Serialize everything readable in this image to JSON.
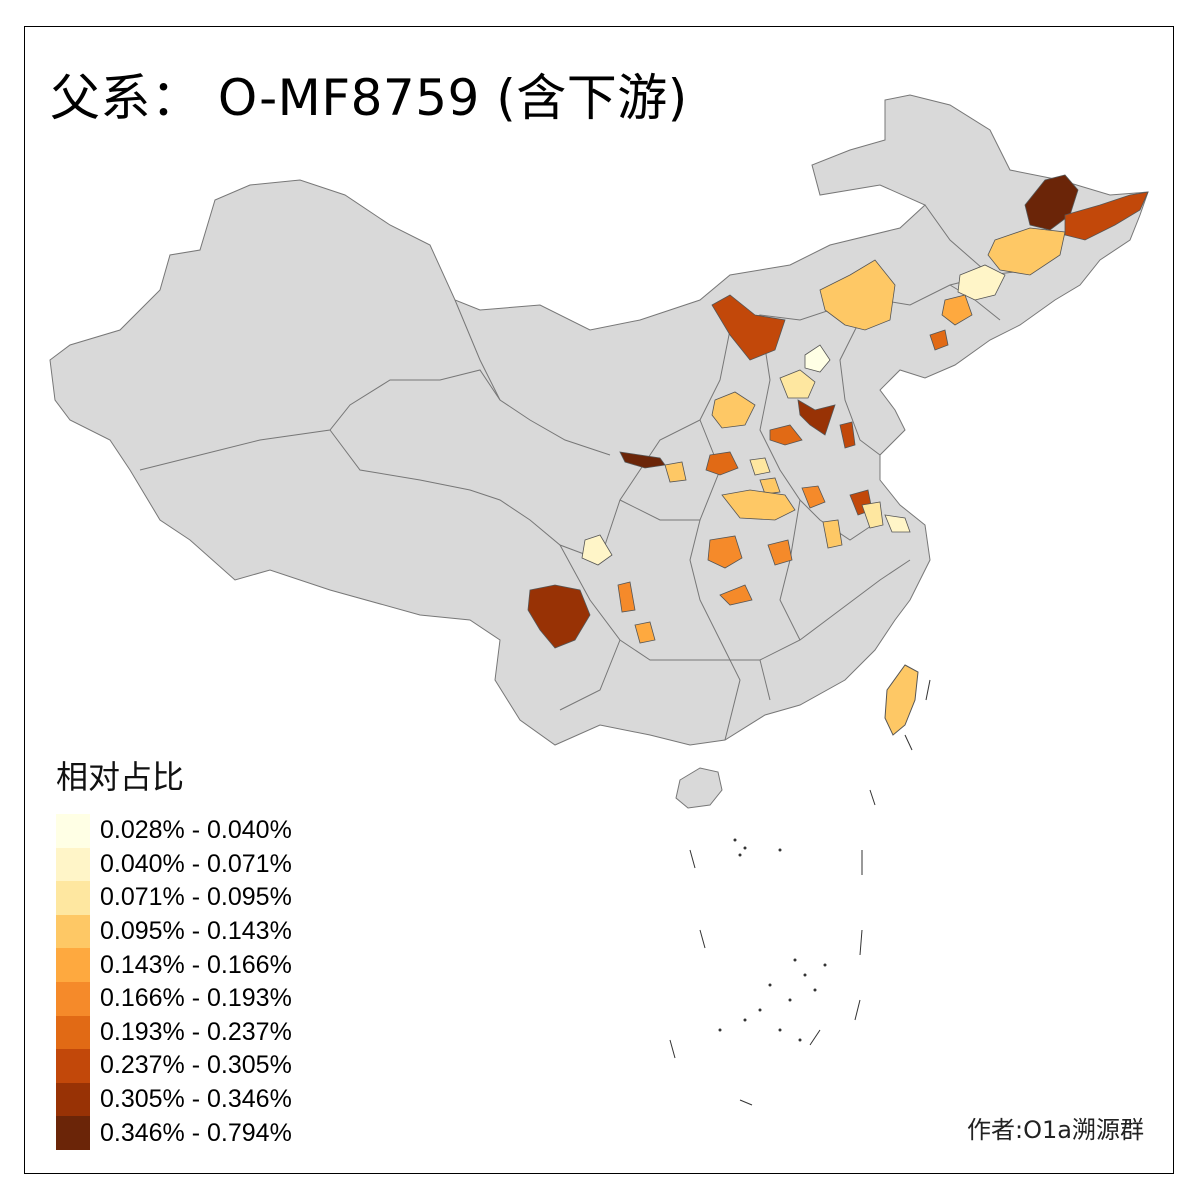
{
  "title": "父系： O-MF8759 (含下游)",
  "credit": "作者:O1a溯源群",
  "legend": {
    "title": "相对占比",
    "bins": [
      {
        "label": "0.028% - 0.040%",
        "color": "#ffffe5"
      },
      {
        "label": "0.040% - 0.071%",
        "color": "#fff5c8"
      },
      {
        "label": "0.071% - 0.095%",
        "color": "#fee7a0"
      },
      {
        "label": "0.095% - 0.143%",
        "color": "#fec865"
      },
      {
        "label": "0.143% - 0.166%",
        "color": "#fea93f"
      },
      {
        "label": "0.166% - 0.193%",
        "color": "#f58a2a"
      },
      {
        "label": "0.193% - 0.237%",
        "color": "#e16a15"
      },
      {
        "label": "0.237% - 0.305%",
        "color": "#c2480a"
      },
      {
        "label": "0.305% - 0.346%",
        "color": "#983205"
      },
      {
        "label": "0.346% - 0.794%",
        "color": "#6b2508"
      }
    ]
  },
  "map": {
    "base_fill": "#d9d9d9",
    "border_color": "#777777"
  }
}
